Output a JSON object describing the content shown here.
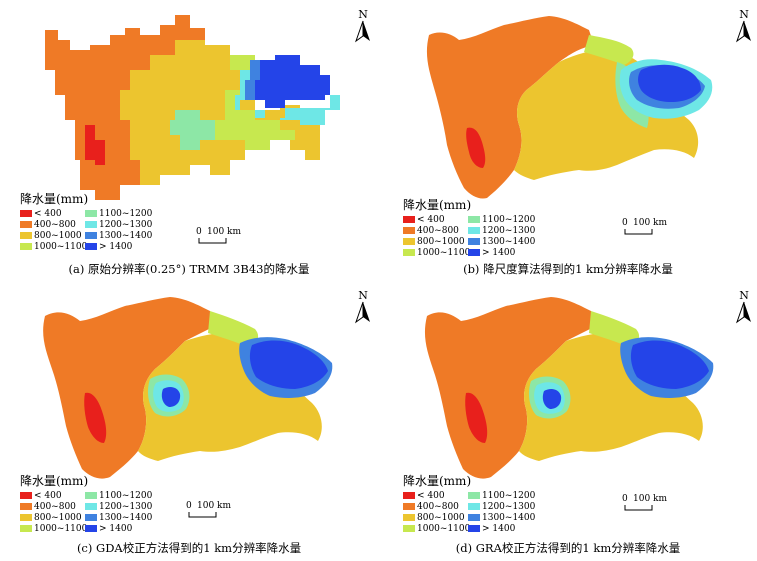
{
  "north_label": "N",
  "legend": {
    "title": "降水量(mm)",
    "items": [
      {
        "label": "< 400",
        "color": "#e8201c"
      },
      {
        "label": "400~800",
        "color": "#ef7a26"
      },
      {
        "label": "800~1000",
        "color": "#ecc52f"
      },
      {
        "label": "1000~1100",
        "color": "#c7e84f"
      },
      {
        "label": "1100~1200",
        "color": "#8de7a6"
      },
      {
        "label": "1200~1300",
        "color": "#6ee7e6"
      },
      {
        "label": "1300~1400",
        "color": "#3f82e0"
      },
      {
        "label": "> 1400",
        "color": "#2444e8"
      }
    ]
  },
  "scale": {
    "zero": "0",
    "distance": "100 km"
  },
  "panels": [
    {
      "id": "a",
      "caption": "(a)  原始分辨率(0.25°) TRMM 3B43的降水量"
    },
    {
      "id": "b",
      "caption": "(b) 降尺度算法得到的1 km分辨率降水量"
    },
    {
      "id": "c",
      "caption": "(c) GDA校正方法得到的1 km分辨率降水量"
    },
    {
      "id": "d",
      "caption": "(d) GRA校正方法得到的1 km分辨率降水量"
    }
  ]
}
